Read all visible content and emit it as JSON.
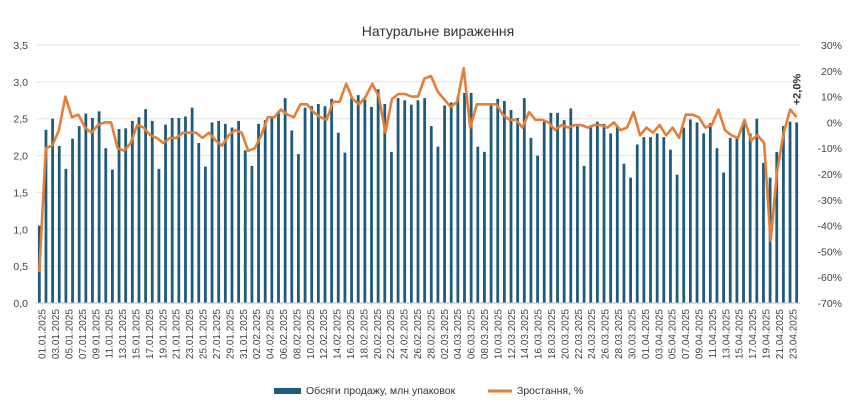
{
  "chart_data": {
    "type": "bar",
    "title": "Натуральне  вираження",
    "legend_placement": "bottom",
    "grid": true,
    "y_left": {
      "min": 0,
      "max": 3.5,
      "ticks": [
        "0,0",
        "0,5",
        "1,0",
        "1,5",
        "2,0",
        "2,5",
        "3,0",
        "3,5"
      ]
    },
    "y_right": {
      "min": -70,
      "max": 30,
      "ticks": [
        "-70%",
        "-60%",
        "-50%",
        "-40%",
        "-30%",
        "-20%",
        "-10%",
        "0%",
        "10%",
        "20%",
        "30%"
      ]
    },
    "x_labels": [
      "01.01.2025",
      "03.01.2025",
      "05.01.2025",
      "07.01.2025",
      "09.01.2025",
      "11.01.2025",
      "13.01.2025",
      "15.01.2025",
      "17.01.2025",
      "19.01.2025",
      "21.01.2025",
      "23.01.2025",
      "25.01.2025",
      "27.01.2025",
      "29.01.2025",
      "31.01.2025",
      "02.02.2025",
      "04.02.2025",
      "06.02.2025",
      "08.02.2025",
      "10.02.2025",
      "12.02.2025",
      "14.02.2025",
      "16.02.2025",
      "18.02.2025",
      "20.02.2025",
      "22.02.2025",
      "24.02.2025",
      "26.02.2025",
      "28.02.2025",
      "02.03.2025",
      "04.03.2025",
      "06.03.2025",
      "08.03.2025",
      "10.03.2025",
      "12.03.2025",
      "14.03.2025",
      "16.03.2025",
      "18.03.2025",
      "20.03.2025",
      "22.03.2025",
      "24.03.2025",
      "26.03.2025",
      "28.03.2025",
      "30.03.2025",
      "01.04.2025",
      "03.04.2025",
      "05.04.2025",
      "07.04.2025",
      "09.04.2025",
      "11.04.2025",
      "13.04.2025",
      "15.04.2025",
      "17.04.2025",
      "19.04.2025",
      "21.04.2025",
      "23.04.2025"
    ],
    "last_label": "+2,0%",
    "series": [
      {
        "name": "Обсяги  продажу, млн  упаковок",
        "type": "bar",
        "axis": "left",
        "color": "#1f5b7a",
        "values": [
          1.05,
          2.35,
          2.5,
          2.13,
          1.82,
          2.23,
          2.4,
          2.57,
          2.51,
          2.6,
          2.1,
          1.81,
          2.36,
          2.37,
          2.47,
          2.52,
          2.63,
          2.47,
          1.82,
          2.42,
          2.51,
          2.51,
          2.53,
          2.65,
          2.17,
          1.85,
          2.45,
          2.47,
          2.43,
          2.38,
          2.47,
          2.07,
          1.86,
          2.43,
          2.48,
          2.51,
          2.6,
          2.78,
          2.34,
          2.02,
          2.65,
          2.67,
          2.7,
          2.67,
          2.77,
          2.31,
          2.04,
          2.78,
          2.82,
          2.76,
          2.66,
          2.9,
          2.7,
          2.05,
          2.78,
          2.75,
          2.69,
          2.75,
          2.78,
          2.4,
          2.12,
          2.68,
          2.72,
          2.8,
          2.85,
          2.85,
          2.12,
          2.05,
          2.69,
          2.77,
          2.74,
          2.62,
          2.51,
          2.78,
          2.24,
          2.0,
          2.46,
          2.58,
          2.58,
          2.48,
          2.64,
          2.4,
          1.86,
          2.4,
          2.46,
          2.43,
          2.3,
          2.39,
          1.89,
          1.7,
          2.15,
          2.25,
          2.25,
          2.3,
          2.25,
          2.08,
          1.74,
          2.38,
          2.49,
          2.45,
          2.3,
          2.44,
          2.1,
          1.77,
          2.24,
          2.23,
          2.43,
          2.3,
          2.5,
          1.9,
          1.7,
          2.05,
          2.4,
          2.46,
          2.45
        ]
      },
      {
        "name": "Зростання, %",
        "type": "line",
        "axis": "right",
        "color": "#e67e35",
        "values": [
          -58,
          -10,
          -9,
          -3,
          10,
          2,
          3,
          -2,
          -4,
          -1,
          0,
          0,
          -10,
          -11,
          -8,
          -1,
          -2,
          -5,
          -6,
          -8,
          -6,
          -6,
          -4,
          -4,
          -4,
          -6,
          -4,
          -7,
          -9,
          -5,
          -3,
          -4,
          -11,
          -10,
          -5,
          2,
          2,
          5,
          3,
          2,
          7,
          7,
          4,
          2,
          1,
          8,
          8,
          15,
          9,
          7,
          10,
          15,
          10,
          -4,
          9,
          11,
          11,
          10,
          10,
          17,
          18,
          12,
          9,
          6,
          8,
          21,
          -2,
          7,
          7,
          7,
          7,
          3,
          1,
          1,
          -2,
          4,
          1,
          1,
          0,
          -3,
          -1,
          -2,
          -1,
          -1,
          -2,
          -1,
          -1,
          -2,
          0,
          -3,
          -2,
          4,
          -5,
          -2,
          -4,
          -1,
          -5,
          -2,
          -6,
          3,
          3,
          2,
          -2,
          -1,
          5,
          -3,
          -5,
          -6,
          1,
          -7,
          -5,
          -8,
          -46,
          -19,
          -4,
          5,
          2
        ]
      }
    ]
  }
}
